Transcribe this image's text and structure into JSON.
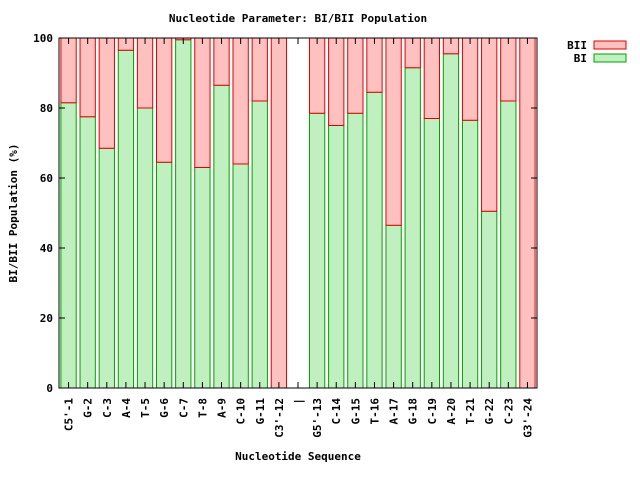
{
  "chart_data": {
    "type": "bar",
    "stacked": true,
    "title": "Nucleotide Parameter: BI/BII Population",
    "xlabel": "Nucleotide Sequence",
    "ylabel": "BI/BII Population (%)",
    "ylim": [
      0,
      100
    ],
    "yticks": [
      0,
      20,
      40,
      60,
      80,
      100
    ],
    "grid": false,
    "legend_position": "top-right",
    "categories": [
      "C5'-1",
      "G-2",
      "C-3",
      "A-4",
      "T-5",
      "G-6",
      "C-7",
      "T-8",
      "A-9",
      "C-10",
      "G-11",
      "C3'-12",
      "|",
      "G5'-13",
      "C-14",
      "G-15",
      "T-16",
      "A-17",
      "G-18",
      "C-19",
      "A-20",
      "T-21",
      "G-22",
      "C-23",
      "G3'-24"
    ],
    "series": [
      {
        "name": "BI",
        "color": "#c0f0c0",
        "edge": "#00a000",
        "values": [
          81.5,
          77.5,
          68.5,
          96.5,
          80,
          64.5,
          99.5,
          63,
          86.5,
          64,
          82,
          0,
          null,
          78.5,
          75,
          78.5,
          84.5,
          46.5,
          91.5,
          77,
          95.5,
          76.5,
          50.5,
          82,
          0
        ]
      },
      {
        "name": "BII",
        "color": "#ffc0c0",
        "edge": "#e00000",
        "values": [
          18.5,
          22.5,
          31.5,
          3.5,
          20,
          35.5,
          0.5,
          37,
          13.5,
          36,
          18,
          100,
          null,
          21.5,
          25,
          21.5,
          15.5,
          53.5,
          8.5,
          23,
          4.5,
          23.5,
          49.5,
          18,
          100
        ]
      }
    ]
  }
}
